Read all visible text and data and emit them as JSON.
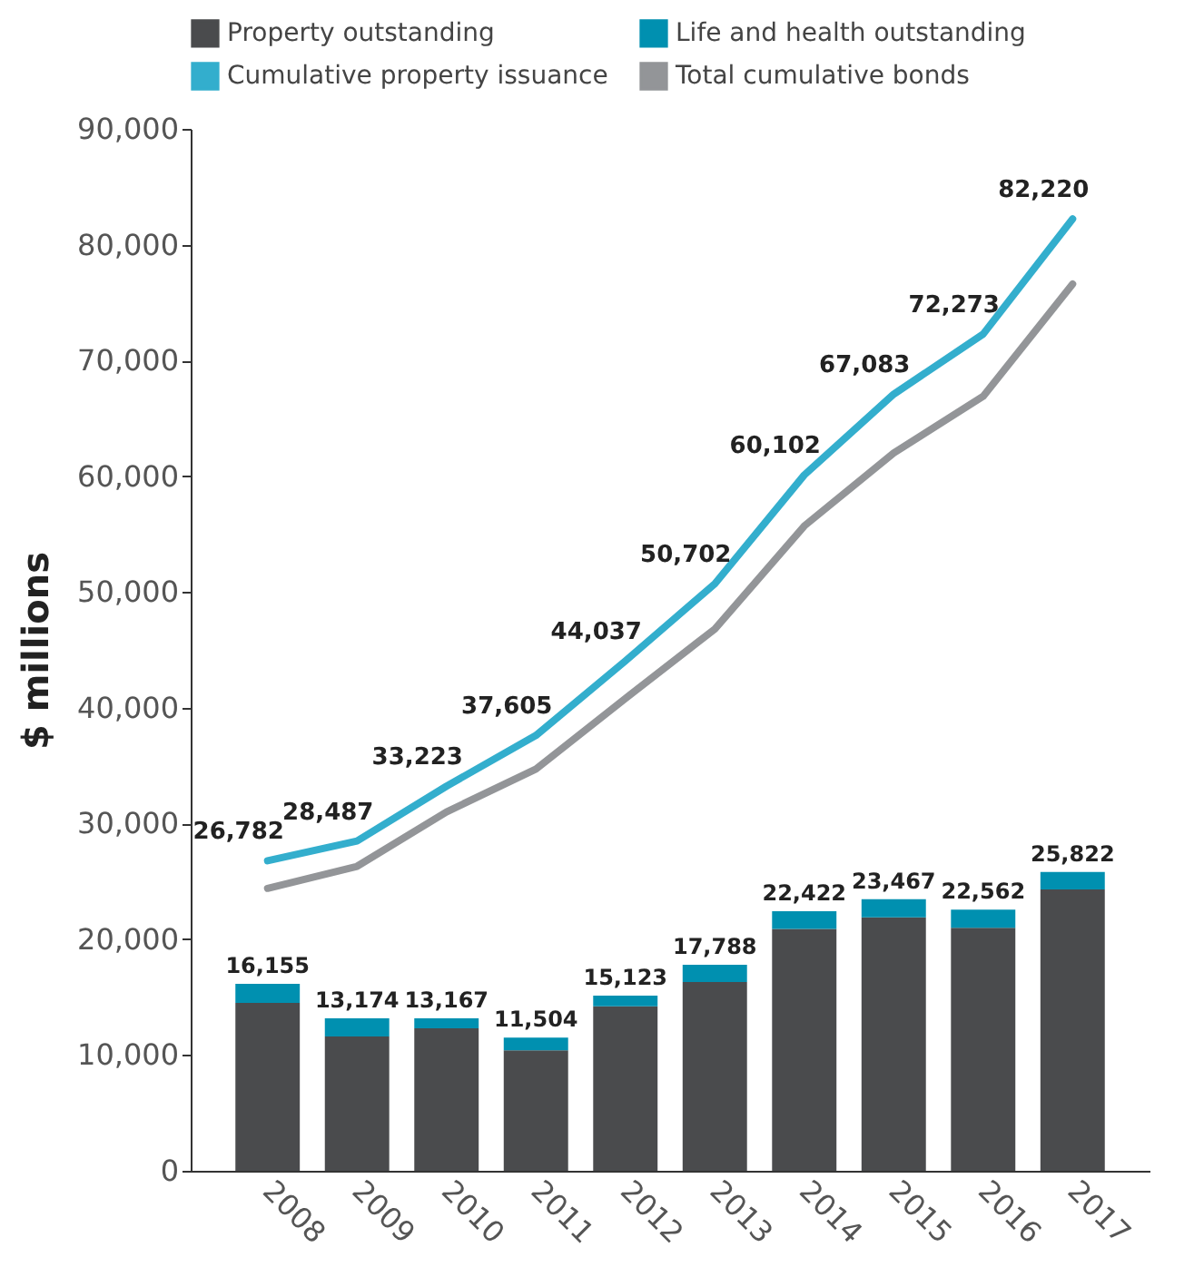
{
  "chart_data": {
    "type": "bar",
    "ylabel": "$ millions",
    "categories": [
      "2008",
      "2009",
      "2010",
      "2011",
      "2012",
      "2013",
      "2014",
      "2015",
      "2016",
      "2017"
    ],
    "series": [
      {
        "name": "Property outstanding",
        "color": "#4a4b4d",
        "values": [
          14500,
          11600,
          12300,
          10400,
          14200,
          16300,
          20900,
          21900,
          21000,
          24300
        ]
      },
      {
        "name": "Life and health outstanding",
        "color": "#0090b0",
        "values": [
          1655,
          1574,
          867,
          1104,
          923,
          1488,
          1522,
          1567,
          1562,
          1522
        ]
      },
      {
        "name": "Cumulative property issuance",
        "type": "line",
        "color": "#33aecd",
        "values": [
          26782,
          28487,
          33223,
          37605,
          44037,
          50702,
          60102,
          67083,
          72273,
          82220
        ],
        "value_labels": [
          "26,782",
          "28,487",
          "33,223",
          "37,605",
          "44,037",
          "50,702",
          "60,102",
          "67,083",
          "72,273",
          "82,220"
        ]
      },
      {
        "name": "Total cumulative bonds",
        "type": "line",
        "color": "#939598",
        "values": [
          24400,
          26300,
          31000,
          34700,
          40800,
          46800,
          55700,
          62000,
          66900,
          76600
        ]
      }
    ],
    "stacked": true,
    "totals": [
      "16,155",
      "13,174",
      "13,167",
      "11,504",
      "15,123",
      "17,788",
      "22,422",
      "23,467",
      "22,562",
      "25,822"
    ],
    "ylim": [
      0,
      90000
    ],
    "yticks": [
      {
        "value": 0,
        "label": "0"
      },
      {
        "value": 10000,
        "label": "10,000"
      },
      {
        "value": 20000,
        "label": "20,000"
      },
      {
        "value": 30000,
        "label": "30,000"
      },
      {
        "value": 40000,
        "label": "40,000"
      },
      {
        "value": 50000,
        "label": "50,000"
      },
      {
        "value": 60000,
        "label": "60,000"
      },
      {
        "value": 70000,
        "label": "70,000"
      },
      {
        "value": 80000,
        "label": "80,000"
      },
      {
        "value": 90000,
        "label": "90,000"
      }
    ],
    "grid": false,
    "legend": "top",
    "marker": "none"
  }
}
